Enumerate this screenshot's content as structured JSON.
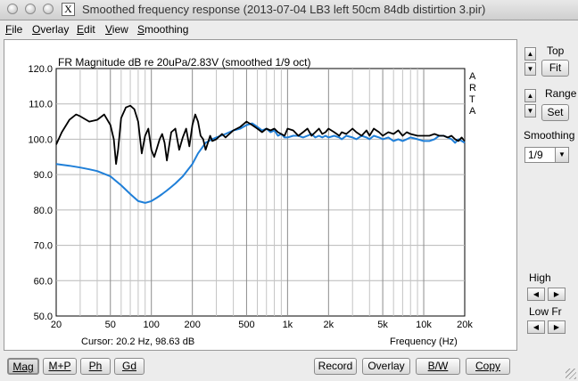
{
  "window": {
    "title": "Smoothed frequency response (2013-07-04 LB3 left 50cm 84db distirtion 3.pir)",
    "app_icon": "X"
  },
  "menu": [
    {
      "label": "File",
      "ul": "F",
      "rest": "ile"
    },
    {
      "label": "Overlay",
      "ul": "O",
      "rest": "verlay"
    },
    {
      "label": "Edit",
      "ul": "E",
      "rest": "dit"
    },
    {
      "label": "View",
      "ul": "V",
      "rest": "iew"
    },
    {
      "label": "Smoothing",
      "ul": "S",
      "rest": "moothing"
    }
  ],
  "plot": {
    "title": "FR Magnitude dB re 20uPa/2.83V (smoothed 1/9 oct)",
    "brand": [
      "A",
      "R",
      "T",
      "A"
    ],
    "cursor": "Cursor: 20.2 Hz, 98.63 dB",
    "xlabel": "Frequency (Hz)",
    "y_ticks": [
      "120.0",
      "110.0",
      "100.0",
      "90.0",
      "80.0",
      "70.0",
      "60.0",
      "50.0"
    ],
    "x_ticks": [
      "20",
      "50",
      "100",
      "200",
      "500",
      "1k",
      "2k",
      "5k",
      "10k",
      "20k"
    ]
  },
  "chart_data": {
    "type": "line",
    "title": "FR Magnitude dB re 20uPa/2.83V (smoothed 1/9 oct)",
    "xlabel": "Frequency (Hz)",
    "ylabel": "",
    "x_scale": "log",
    "xlim": [
      20,
      20000
    ],
    "ylim": [
      50,
      120
    ],
    "grid": true,
    "series": [
      {
        "color": "#000000",
        "x": [
          20,
          22,
          25,
          28,
          30,
          35,
          40,
          45,
          50,
          53,
          55,
          57,
          60,
          65,
          70,
          75,
          80,
          85,
          90,
          95,
          100,
          105,
          110,
          115,
          120,
          125,
          130,
          140,
          150,
          160,
          170,
          180,
          190,
          200,
          210,
          220,
          230,
          240,
          250,
          260,
          270,
          280,
          300,
          330,
          350,
          400,
          450,
          500,
          550,
          600,
          650,
          700,
          750,
          800,
          850,
          900,
          950,
          1000,
          1100,
          1200,
          1300,
          1400,
          1500,
          1600,
          1700,
          1800,
          1900,
          2000,
          2200,
          2400,
          2500,
          2700,
          3000,
          3200,
          3500,
          3800,
          4000,
          4300,
          4700,
          5000,
          5500,
          6000,
          6500,
          7000,
          7500,
          8000,
          9000,
          10000,
          11000,
          12000,
          13000,
          14000,
          15000,
          16000,
          17000,
          18000,
          19000,
          20000
        ],
        "values": [
          98.5,
          102,
          105.5,
          107,
          106.5,
          105,
          105.5,
          107,
          104,
          100,
          93,
          97,
          106,
          109,
          109.5,
          108.5,
          105,
          96,
          101,
          103,
          97,
          95,
          97.5,
          100,
          101.5,
          99,
          94,
          102,
          103,
          97,
          100.5,
          103,
          98,
          104,
          107,
          105,
          101,
          100,
          97,
          99,
          101,
          99.5,
          100,
          101.5,
          100.5,
          102.5,
          103.5,
          105,
          104,
          103,
          102,
          103,
          102.5,
          103,
          102,
          101.5,
          101,
          103,
          102.5,
          101,
          102,
          103,
          101,
          102,
          103,
          101.5,
          102,
          103,
          102,
          101,
          102,
          101.5,
          103,
          102,
          101,
          102.5,
          101,
          103,
          102,
          101,
          102,
          101.5,
          102.5,
          101,
          102,
          101.5,
          101,
          101,
          101,
          101.5,
          101,
          101,
          100.5,
          101,
          100,
          99.5,
          100.5,
          99.5
        ]
      },
      {
        "color": "#1f7fd8",
        "x": [
          20,
          25,
          30,
          35,
          40,
          50,
          60,
          70,
          80,
          90,
          100,
          110,
          115,
          120,
          130,
          140,
          150,
          170,
          200,
          220,
          250,
          280,
          300,
          350,
          400,
          450,
          500,
          550,
          600,
          650,
          700,
          750,
          800,
          850,
          900,
          950,
          1000,
          1100,
          1200,
          1300,
          1400,
          1500,
          1600,
          1700,
          1800,
          1900,
          2000,
          2200,
          2400,
          2500,
          2700,
          3000,
          3200,
          3500,
          3800,
          4000,
          4300,
          4700,
          5000,
          5500,
          6000,
          6500,
          7000,
          7500,
          8000,
          9000,
          10000,
          11000,
          12000,
          13000,
          14000,
          15000,
          16000,
          17000,
          18000,
          19000,
          20000
        ],
        "values": [
          93,
          92.5,
          92,
          91.5,
          91,
          89.5,
          87,
          84.5,
          82.5,
          82,
          82.5,
          83.5,
          84,
          84.5,
          85.5,
          86.5,
          87.5,
          89.5,
          93,
          96,
          99,
          100,
          100.5,
          101.5,
          102.5,
          103,
          104,
          104.5,
          103.5,
          102.5,
          103,
          102,
          102.5,
          101,
          101.5,
          100.5,
          100.5,
          101,
          101,
          100.5,
          101,
          101.5,
          100.5,
          101,
          100.5,
          101,
          100.5,
          101,
          100.5,
          100,
          101,
          100.5,
          100,
          101,
          100.5,
          100,
          101,
          100.5,
          100,
          100.5,
          99.5,
          100,
          99.5,
          100,
          100.5,
          100,
          99.5,
          99.5,
          100,
          101,
          101,
          100.5,
          100,
          99,
          100,
          99.5,
          99
        ]
      }
    ]
  },
  "sidebar": {
    "top_label": "Top",
    "top_btn": "Fit",
    "range_label": "Range",
    "range_btn": "Set",
    "smoothing_label": "Smoothing",
    "smoothing_value": "1/9",
    "high_label": "High",
    "lowfr_label": "Low Fr",
    "up_arrow": "▲",
    "down_arrow": "▼",
    "left_arrow": "◀",
    "right_arrow": "▶"
  },
  "bottom": {
    "mag": "Mag",
    "mp": "M+P",
    "ph": "Ph",
    "gd": "Gd",
    "record": "Record",
    "overlay": "Overlay",
    "bw": "B/W",
    "copy": "Copy"
  }
}
